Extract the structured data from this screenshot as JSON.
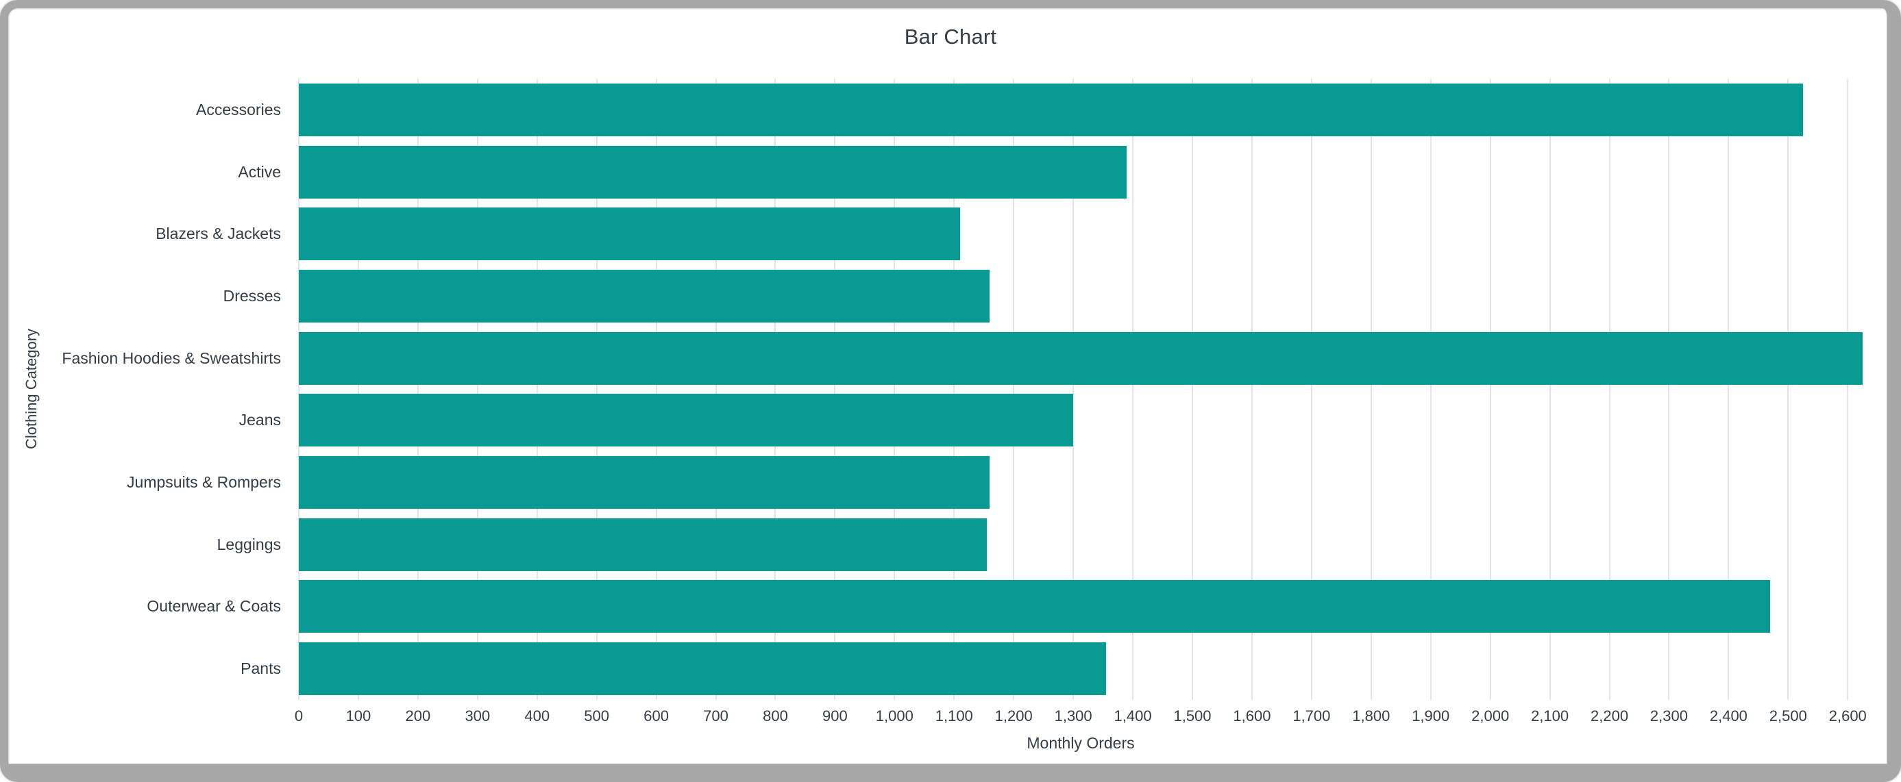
{
  "window": {
    "frame_color": "#a7a7a7",
    "background_color": "#ffffff"
  },
  "chart_data": {
    "type": "bar",
    "orientation": "horizontal",
    "title": "Bar Chart",
    "xlabel": "Monthly Orders",
    "ylabel": "Clothing Category",
    "categories": [
      "Accessories",
      "Active",
      "Blazers & Jackets",
      "Dresses",
      "Fashion Hoodies & Sweatshirts",
      "Jeans",
      "Jumpsuits & Rompers",
      "Leggings",
      "Outerwear & Coats",
      "Pants"
    ],
    "values": [
      2525,
      1390,
      1110,
      1160,
      2625,
      1300,
      1160,
      1155,
      2470,
      1355
    ],
    "xlim": [
      0,
      2625
    ],
    "x_tick_values": [
      0,
      100,
      200,
      300,
      400,
      500,
      600,
      700,
      800,
      900,
      1000,
      1100,
      1200,
      1300,
      1400,
      1500,
      1600,
      1700,
      1800,
      1900,
      2000,
      2100,
      2200,
      2300,
      2400,
      2500,
      2600
    ],
    "x_tick_labels": [
      "0",
      "100",
      "200",
      "300",
      "400",
      "500",
      "600",
      "700",
      "800",
      "900",
      "1,000",
      "1,100",
      "1,200",
      "1,300",
      "1,400",
      "1,500",
      "1,600",
      "1,700",
      "1,800",
      "1,900",
      "2,000",
      "2,100",
      "2,200",
      "2,300",
      "2,400",
      "2,500",
      "2,600"
    ],
    "grid": true,
    "legend": false,
    "bar_color": "#0a9a94",
    "grid_color": "#e2e4e6",
    "text_color": "#313d47"
  }
}
